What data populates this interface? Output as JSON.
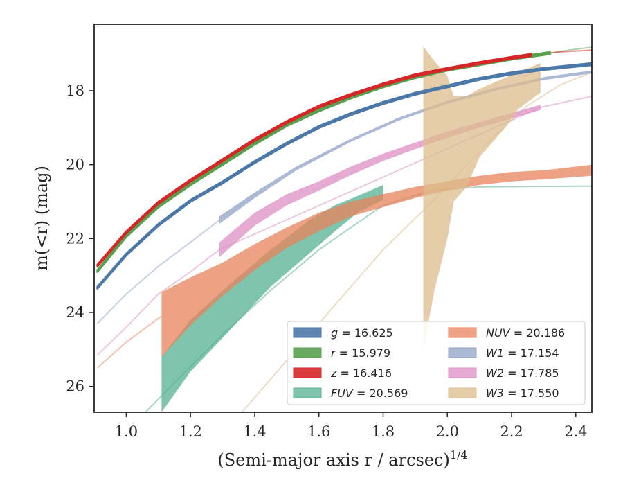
{
  "chart_data": {
    "type": "line",
    "xlabel": "(Semi-major axis r / arcsec)",
    "xlabel_superscript": "1/4",
    "ylabel": "m(<r) (mag)",
    "xlim": [
      0.9,
      2.45
    ],
    "ylim": [
      26.7,
      16.2
    ],
    "y_inverted": true,
    "grid": false,
    "legend_position": "lower-right",
    "x_ticks": [
      {
        "value": 1.0,
        "label": "1.0"
      },
      {
        "value": 1.2,
        "label": "1.2"
      },
      {
        "value": 1.4,
        "label": "1.4"
      },
      {
        "value": 1.6,
        "label": "1.6"
      },
      {
        "value": 1.8,
        "label": "1.8"
      },
      {
        "value": 2.0,
        "label": "2.0"
      },
      {
        "value": 2.2,
        "label": "2.2"
      },
      {
        "value": 2.4,
        "label": "2.4"
      }
    ],
    "y_ticks": [
      {
        "value": 18,
        "label": "18"
      },
      {
        "value": 20,
        "label": "20"
      },
      {
        "value": 22,
        "label": "22"
      },
      {
        "value": 24,
        "label": "24"
      },
      {
        "value": 26,
        "label": "26"
      }
    ],
    "series": [
      {
        "key": "g",
        "name": "g = 16.625",
        "color": "#4c78a8",
        "band": [
          [
            0.91,
            23.3,
            23.36
          ],
          [
            1.0,
            22.4,
            22.46
          ],
          [
            1.1,
            21.6,
            21.66
          ],
          [
            1.2,
            20.95,
            21.01
          ],
          [
            1.3,
            20.45,
            20.51
          ],
          [
            1.4,
            19.9,
            19.96
          ],
          [
            1.5,
            19.4,
            19.46
          ],
          [
            1.6,
            18.95,
            19.01
          ],
          [
            1.7,
            18.6,
            18.66
          ],
          [
            1.8,
            18.3,
            18.36
          ],
          [
            1.9,
            18.05,
            18.11
          ],
          [
            2.0,
            17.85,
            17.91
          ],
          [
            2.1,
            17.65,
            17.71
          ],
          [
            2.2,
            17.5,
            17.56
          ],
          [
            2.3,
            17.38,
            17.44
          ],
          [
            2.45,
            17.25,
            17.31
          ]
        ],
        "extrap": [],
        "line": true
      },
      {
        "key": "r",
        "name": "r = 15.979",
        "color": "#59a14f",
        "band": [
          [
            0.91,
            22.85,
            22.91
          ],
          [
            1.0,
            21.9,
            21.96
          ],
          [
            1.1,
            21.1,
            21.16
          ],
          [
            1.2,
            20.5,
            20.56
          ],
          [
            1.3,
            19.95,
            20.01
          ],
          [
            1.4,
            19.4,
            19.46
          ],
          [
            1.5,
            18.9,
            18.96
          ],
          [
            1.6,
            18.5,
            18.56
          ],
          [
            1.7,
            18.15,
            18.21
          ],
          [
            1.8,
            17.85,
            17.91
          ],
          [
            1.9,
            17.6,
            17.66
          ],
          [
            2.0,
            17.4,
            17.46
          ],
          [
            2.1,
            17.25,
            17.31
          ],
          [
            2.2,
            17.1,
            17.16
          ],
          [
            2.32,
            16.95,
            17.01
          ]
        ],
        "extrap": [
          [
            2.32,
            16.98
          ],
          [
            2.38,
            16.9
          ],
          [
            2.45,
            16.82
          ]
        ],
        "line": true
      },
      {
        "key": "z",
        "name": "z = 16.416",
        "color": "#d62728",
        "band": [
          [
            0.91,
            22.7,
            22.76
          ],
          [
            1.0,
            21.8,
            21.86
          ],
          [
            1.1,
            21.0,
            21.06
          ],
          [
            1.2,
            20.4,
            20.46
          ],
          [
            1.3,
            19.85,
            19.91
          ],
          [
            1.4,
            19.3,
            19.36
          ],
          [
            1.5,
            18.82,
            18.88
          ],
          [
            1.6,
            18.4,
            18.46
          ],
          [
            1.7,
            18.08,
            18.14
          ],
          [
            1.8,
            17.8,
            17.86
          ],
          [
            1.9,
            17.55,
            17.61
          ],
          [
            2.0,
            17.38,
            17.44
          ],
          [
            2.1,
            17.22,
            17.28
          ],
          [
            2.2,
            17.08,
            17.14
          ],
          [
            2.26,
            17.0,
            17.06
          ]
        ],
        "extrap": [
          [
            2.26,
            17.03
          ],
          [
            2.35,
            16.95
          ],
          [
            2.45,
            16.9
          ]
        ],
        "line": true
      },
      {
        "key": "FUV",
        "name": "FUV = 20.569",
        "color": "#54b090",
        "band": [
          [
            1.11,
            25.2,
            26.7
          ],
          [
            1.2,
            24.2,
            25.6
          ],
          [
            1.32,
            23.25,
            24.5
          ],
          [
            1.45,
            22.3,
            23.3
          ],
          [
            1.57,
            21.5,
            22.4
          ],
          [
            1.65,
            21.1,
            21.8
          ],
          [
            1.72,
            20.85,
            21.3
          ],
          [
            1.8,
            20.55,
            20.95
          ]
        ],
        "extrap": [
          [
            1.06,
            26.7
          ],
          [
            1.15,
            25.9
          ],
          [
            1.3,
            24.6
          ],
          [
            1.45,
            23.4
          ],
          [
            1.6,
            22.3
          ],
          [
            1.8,
            21.1
          ],
          [
            1.95,
            20.7
          ],
          [
            2.1,
            20.6
          ],
          [
            2.45,
            20.58
          ]
        ],
        "line": false
      },
      {
        "key": "NUV",
        "name": "NUV = 20.186",
        "color": "#e8835c",
        "band": [
          [
            1.11,
            23.45,
            25.2
          ],
          [
            1.2,
            23.05,
            24.35
          ],
          [
            1.3,
            22.65,
            23.55
          ],
          [
            1.4,
            22.15,
            22.85
          ],
          [
            1.5,
            21.7,
            22.25
          ],
          [
            1.6,
            21.3,
            21.8
          ],
          [
            1.7,
            21.0,
            21.4
          ],
          [
            1.8,
            20.8,
            21.15
          ],
          [
            1.9,
            20.6,
            20.9
          ],
          [
            2.0,
            20.45,
            20.7
          ],
          [
            2.1,
            20.3,
            20.55
          ],
          [
            2.2,
            20.2,
            20.45
          ],
          [
            2.3,
            20.15,
            20.4
          ],
          [
            2.45,
            20.0,
            20.3
          ]
        ],
        "extrap": [
          [
            0.91,
            25.5
          ],
          [
            1.0,
            24.8
          ],
          [
            1.11,
            24.1
          ]
        ],
        "line": false
      },
      {
        "key": "W1",
        "name": "W1 = 17.154",
        "color": "#8fa1c7",
        "band": [
          [
            1.29,
            21.4,
            21.6
          ],
          [
            1.4,
            20.75,
            20.9
          ],
          [
            1.53,
            20.05,
            20.15
          ],
          [
            1.7,
            19.3,
            19.38
          ],
          [
            1.85,
            18.72,
            18.8
          ],
          [
            2.0,
            18.27,
            18.35
          ],
          [
            2.15,
            17.92,
            18.0
          ],
          [
            2.3,
            17.63,
            17.71
          ],
          [
            2.45,
            17.45,
            17.53
          ]
        ],
        "extrap": [
          [
            0.91,
            24.3
          ],
          [
            1.0,
            23.5
          ],
          [
            1.1,
            22.75
          ],
          [
            1.2,
            22.1
          ],
          [
            1.29,
            21.5
          ]
        ],
        "line": false
      },
      {
        "key": "W2",
        "name": "W2 = 17.785",
        "color": "#dd8fc4",
        "band": [
          [
            1.29,
            22.1,
            22.5
          ],
          [
            1.4,
            21.3,
            21.65
          ],
          [
            1.5,
            20.8,
            21.1
          ],
          [
            1.6,
            20.45,
            20.7
          ],
          [
            1.7,
            20.05,
            20.28
          ],
          [
            1.8,
            19.7,
            19.9
          ],
          [
            1.9,
            19.4,
            19.58
          ],
          [
            2.0,
            19.1,
            19.27
          ],
          [
            2.1,
            18.85,
            19.0
          ],
          [
            2.2,
            18.6,
            18.75
          ],
          [
            2.29,
            18.38,
            18.52
          ]
        ],
        "extrap": [
          [
            0.91,
            25.15
          ],
          [
            1.0,
            24.4
          ],
          [
            1.1,
            23.5
          ],
          [
            1.2,
            22.9
          ],
          [
            1.29,
            22.3
          ],
          [
            2.29,
            18.45
          ],
          [
            2.37,
            18.3
          ],
          [
            2.45,
            18.15
          ]
        ],
        "line": false
      },
      {
        "key": "W3",
        "name": "W3 = 17.550",
        "color": "#dcbc8c",
        "band": [
          [
            1.925,
            16.8,
            25.0
          ],
          [
            1.96,
            17.2,
            23.4
          ],
          [
            2.0,
            17.6,
            22.0
          ],
          [
            2.02,
            18.15,
            21.0
          ],
          [
            2.06,
            18.15,
            20.6
          ],
          [
            2.1,
            17.95,
            19.8
          ],
          [
            2.18,
            17.65,
            19.0
          ],
          [
            2.22,
            17.5,
            18.5
          ],
          [
            2.29,
            17.25,
            18.05
          ]
        ],
        "extrap": [
          [
            1.36,
            26.7
          ],
          [
            1.5,
            25.3
          ],
          [
            1.65,
            23.8
          ],
          [
            1.8,
            22.3
          ],
          [
            1.93,
            21.2
          ],
          [
            2.05,
            20.1
          ],
          [
            2.15,
            19.2
          ],
          [
            2.25,
            18.4
          ],
          [
            2.35,
            17.85
          ],
          [
            2.45,
            17.5
          ]
        ],
        "line": false
      }
    ]
  }
}
